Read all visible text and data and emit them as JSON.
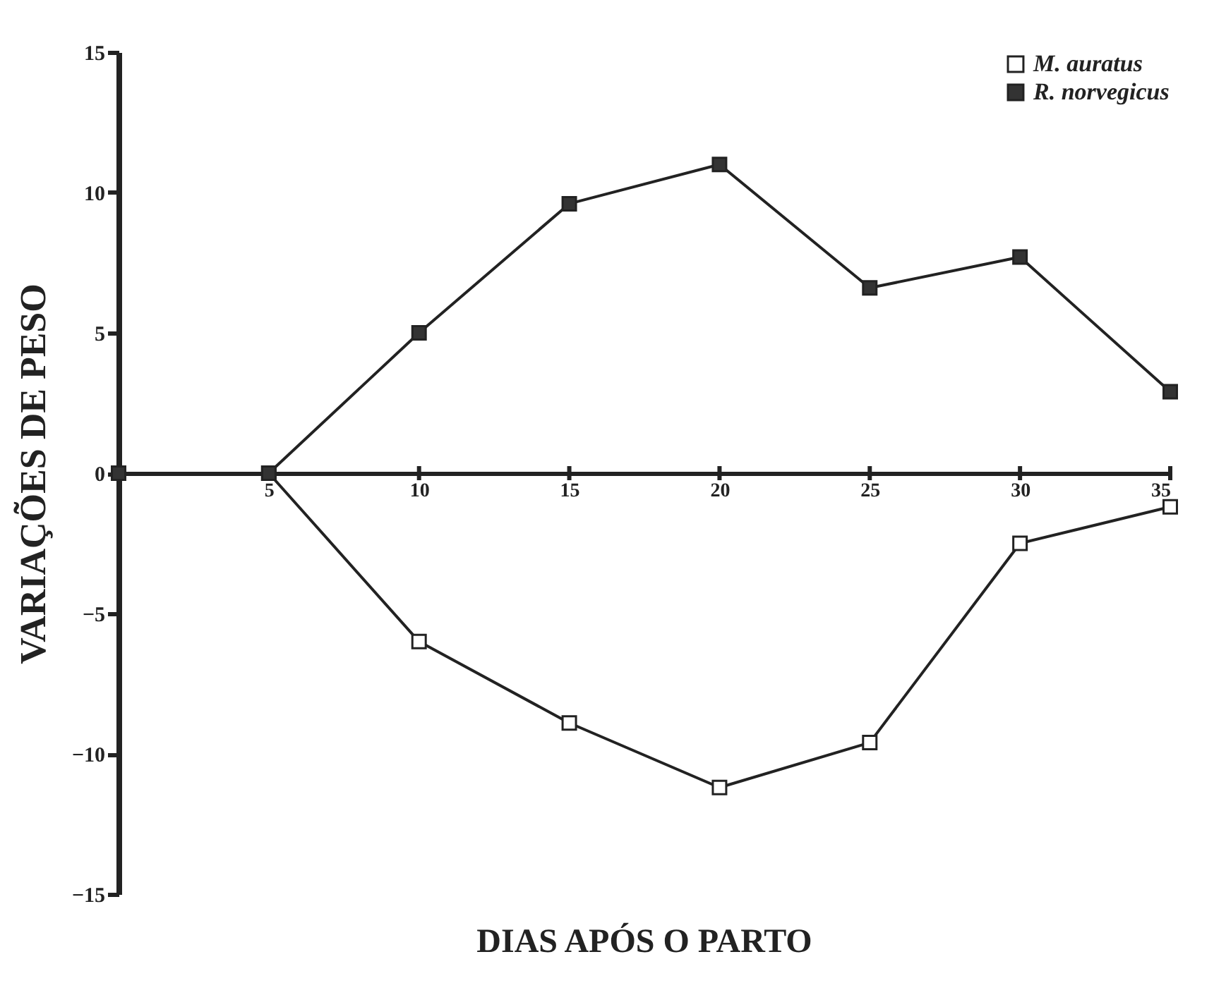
{
  "chart_data": {
    "type": "line",
    "xlabel": "DIAS APÓS O PARTO",
    "ylabel": "VARIAÇÕES DE PESO",
    "x": [
      0,
      5,
      10,
      15,
      20,
      25,
      30,
      35
    ],
    "series": [
      {
        "name": "M. auratus",
        "color": "#ffffff",
        "values": [
          0,
          0,
          -6.0,
          -8.9,
          -11.2,
          -9.6,
          -2.5,
          -1.2
        ]
      },
      {
        "name": "R. norvegicus",
        "color": "#333333",
        "values": [
          0,
          0,
          5.0,
          9.6,
          11.0,
          6.6,
          7.7,
          2.9
        ]
      }
    ],
    "xlim": [
      0,
      35
    ],
    "xticks": [
      5,
      10,
      15,
      20,
      25,
      30,
      35
    ],
    "ylim": [
      -15,
      15
    ],
    "yticks": [
      -15,
      -10,
      -5,
      0,
      5,
      10,
      15
    ],
    "grid": false,
    "legend": "top right",
    "marker": "square",
    "line_style": "solid"
  }
}
